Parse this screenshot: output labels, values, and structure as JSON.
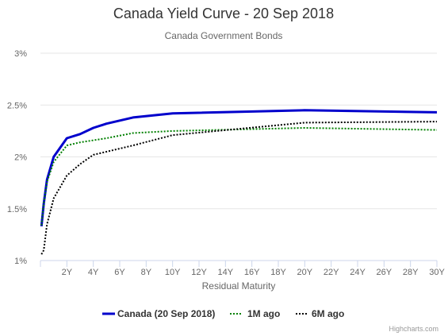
{
  "chart_data": {
    "type": "line",
    "title": "Canada Yield Curve - 20 Sep 2018",
    "subtitle": "Canada Government Bonds",
    "xlabel": "Residual Maturity",
    "ylabel": "",
    "xlim": [
      0,
      30
    ],
    "ylim": [
      1,
      3
    ],
    "x_ticks": [
      2,
      4,
      6,
      8,
      10,
      12,
      14,
      16,
      18,
      20,
      22,
      24,
      26,
      28,
      30
    ],
    "x_tick_labels": [
      "2Y",
      "4Y",
      "6Y",
      "8Y",
      "10Y",
      "12Y",
      "14Y",
      "16Y",
      "18Y",
      "20Y",
      "22Y",
      "24Y",
      "26Y",
      "28Y",
      "30Y"
    ],
    "y_ticks": [
      1,
      1.5,
      2,
      2.5,
      3
    ],
    "y_tick_labels": [
      "1%",
      "1.5%",
      "2%",
      "2.5%",
      "3%"
    ],
    "grid": true,
    "legend_position": "bottom",
    "series": [
      {
        "name": "Canada (20 Sep 2018)",
        "color": "#0000cc",
        "dash": "solid",
        "x": [
          0.08,
          0.25,
          0.5,
          1,
          2,
          3,
          4,
          5,
          7,
          10,
          20,
          30
        ],
        "y": [
          1.33,
          1.55,
          1.78,
          2.0,
          2.18,
          2.22,
          2.28,
          2.32,
          2.38,
          2.42,
          2.45,
          2.43
        ]
      },
      {
        "name": "1M ago",
        "color": "#008000",
        "dash": "dotted",
        "x": [
          0.08,
          0.25,
          0.5,
          1,
          2,
          3,
          4,
          5,
          7,
          10,
          20,
          30
        ],
        "y": [
          1.34,
          1.55,
          1.76,
          1.95,
          2.11,
          2.14,
          2.16,
          2.18,
          2.23,
          2.25,
          2.28,
          2.26
        ]
      },
      {
        "name": "6M ago",
        "color": "#000000",
        "dash": "dotted",
        "x": [
          0.08,
          0.25,
          0.5,
          1,
          2,
          3,
          4,
          5,
          7,
          10,
          20,
          30
        ],
        "y": [
          1.06,
          1.1,
          1.35,
          1.6,
          1.82,
          1.93,
          2.02,
          2.05,
          2.11,
          2.21,
          2.33,
          2.34
        ]
      }
    ]
  },
  "credits": "Highcharts.com"
}
